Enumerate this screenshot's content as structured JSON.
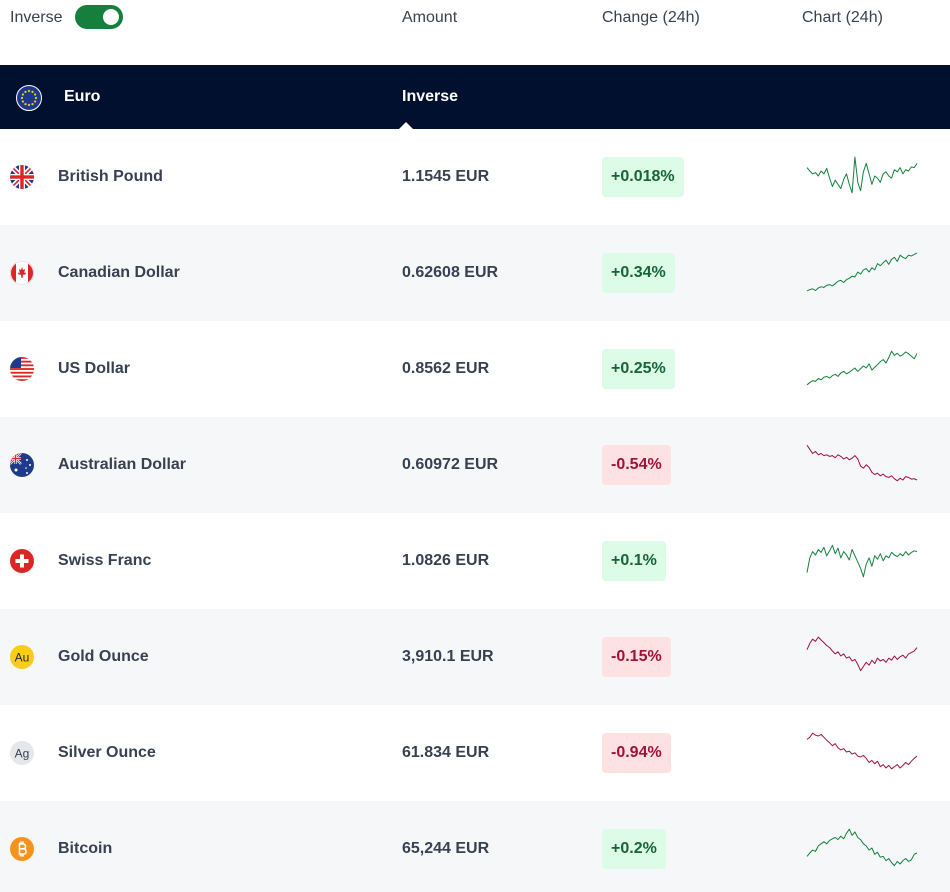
{
  "header": {
    "inverse_label": "Inverse",
    "inverse_on": true,
    "columns": {
      "amount": "Amount",
      "change": "Change (24h)",
      "chart": "Chart (24h)"
    }
  },
  "base": {
    "name": "Euro",
    "mode": "Inverse",
    "flag_icon": "eu-flag-icon"
  },
  "colors": {
    "positive": "#15803d",
    "negative": "#9f1239",
    "base_bar": "#02102f",
    "toggle": "#15803d"
  },
  "rows": [
    {
      "name": "British Pound",
      "amount": "1.1545 EUR",
      "change": "+0.018%",
      "direction": "up",
      "icon": "uk-flag-icon",
      "trend": [
        0.7,
        0.62,
        0.55,
        0.58,
        0.5,
        0.62,
        0.55,
        0.68,
        0.45,
        0.25,
        0.4,
        0.3,
        0.2,
        0.42,
        0.55,
        0.3,
        0.1,
        0.95,
        0.35,
        0.15,
        0.6,
        0.8,
        0.55,
        0.3,
        0.5,
        0.45,
        0.35,
        0.55,
        0.6,
        0.5,
        0.45,
        0.65,
        0.6,
        0.7,
        0.55,
        0.65,
        0.62,
        0.72,
        0.7,
        0.8
      ]
    },
    {
      "name": "Canadian Dollar",
      "amount": "0.62608 EUR",
      "change": "+0.34%",
      "direction": "up",
      "icon": "canada-flag-icon",
      "trend": [
        0.05,
        0.08,
        0.1,
        0.06,
        0.12,
        0.15,
        0.13,
        0.18,
        0.2,
        0.17,
        0.22,
        0.28,
        0.3,
        0.25,
        0.32,
        0.35,
        0.4,
        0.38,
        0.5,
        0.45,
        0.55,
        0.58,
        0.5,
        0.6,
        0.55,
        0.7,
        0.65,
        0.72,
        0.78,
        0.68,
        0.8,
        0.85,
        0.75,
        0.9,
        0.85,
        0.82,
        0.9,
        0.88,
        0.92,
        0.95
      ]
    },
    {
      "name": "US Dollar",
      "amount": "0.8562 EUR",
      "change": "+0.25%",
      "direction": "up",
      "icon": "us-flag-icon",
      "trend": [
        0.1,
        0.15,
        0.2,
        0.18,
        0.25,
        0.22,
        0.28,
        0.3,
        0.26,
        0.32,
        0.35,
        0.3,
        0.38,
        0.42,
        0.36,
        0.4,
        0.45,
        0.5,
        0.42,
        0.48,
        0.55,
        0.5,
        0.6,
        0.45,
        0.52,
        0.58,
        0.65,
        0.7,
        0.62,
        0.75,
        0.9,
        0.8,
        0.85,
        0.78,
        0.82,
        0.88,
        0.84,
        0.78,
        0.72,
        0.85
      ]
    },
    {
      "name": "Australian Dollar",
      "amount": "0.60972 EUR",
      "change": "-0.54%",
      "direction": "down",
      "icon": "australia-flag-icon",
      "trend": [
        0.95,
        0.85,
        0.75,
        0.8,
        0.72,
        0.75,
        0.7,
        0.72,
        0.68,
        0.7,
        0.65,
        0.72,
        0.68,
        0.62,
        0.66,
        0.6,
        0.64,
        0.7,
        0.62,
        0.45,
        0.4,
        0.48,
        0.42,
        0.3,
        0.25,
        0.28,
        0.22,
        0.26,
        0.2,
        0.18,
        0.22,
        0.15,
        0.1,
        0.16,
        0.12,
        0.2,
        0.18,
        0.14,
        0.15,
        0.12
      ]
    },
    {
      "name": "Swiss Franc",
      "amount": "1.0826 EUR",
      "change": "+0.1%",
      "direction": "up",
      "icon": "swiss-flag-icon",
      "trend": [
        0.2,
        0.55,
        0.7,
        0.62,
        0.75,
        0.68,
        0.8,
        0.6,
        0.72,
        0.85,
        0.65,
        0.78,
        0.55,
        0.7,
        0.62,
        0.5,
        0.75,
        0.6,
        0.45,
        0.3,
        0.1,
        0.4,
        0.55,
        0.35,
        0.6,
        0.52,
        0.65,
        0.48,
        0.6,
        0.55,
        0.68,
        0.62,
        0.58,
        0.65,
        0.6,
        0.7,
        0.62,
        0.68,
        0.72,
        0.7
      ]
    },
    {
      "name": "Gold Ounce",
      "amount": "3,910.1 EUR",
      "change": "-0.15%",
      "direction": "down",
      "icon": "gold-coin-icon",
      "trend": [
        0.65,
        0.8,
        0.9,
        0.85,
        0.95,
        0.88,
        0.82,
        0.75,
        0.7,
        0.62,
        0.55,
        0.6,
        0.5,
        0.55,
        0.45,
        0.48,
        0.38,
        0.42,
        0.3,
        0.15,
        0.25,
        0.35,
        0.28,
        0.4,
        0.32,
        0.45,
        0.38,
        0.42,
        0.35,
        0.45,
        0.4,
        0.5,
        0.42,
        0.48,
        0.52,
        0.45,
        0.55,
        0.58,
        0.62,
        0.7
      ]
    },
    {
      "name": "Silver Ounce",
      "amount": "61.834 EUR",
      "change": "-0.94%",
      "direction": "down",
      "icon": "silver-coin-icon",
      "trend": [
        0.8,
        0.85,
        0.95,
        0.9,
        0.88,
        0.92,
        0.85,
        0.78,
        0.72,
        0.65,
        0.7,
        0.6,
        0.55,
        0.58,
        0.5,
        0.52,
        0.45,
        0.48,
        0.4,
        0.38,
        0.42,
        0.35,
        0.25,
        0.3,
        0.22,
        0.28,
        0.15,
        0.2,
        0.12,
        0.18,
        0.1,
        0.15,
        0.2,
        0.12,
        0.18,
        0.25,
        0.2,
        0.28,
        0.35,
        0.4
      ]
    },
    {
      "name": "Bitcoin",
      "amount": "65,244 EUR",
      "change": "+0.2%",
      "direction": "up",
      "icon": "bitcoin-icon",
      "trend": [
        0.3,
        0.38,
        0.45,
        0.42,
        0.55,
        0.6,
        0.65,
        0.6,
        0.68,
        0.72,
        0.75,
        0.7,
        0.78,
        0.72,
        0.85,
        0.95,
        0.8,
        0.88,
        0.75,
        0.7,
        0.6,
        0.55,
        0.45,
        0.5,
        0.35,
        0.4,
        0.28,
        0.3,
        0.2,
        0.25,
        0.15,
        0.08,
        0.18,
        0.12,
        0.2,
        0.25,
        0.18,
        0.22,
        0.35,
        0.38
      ]
    }
  ]
}
